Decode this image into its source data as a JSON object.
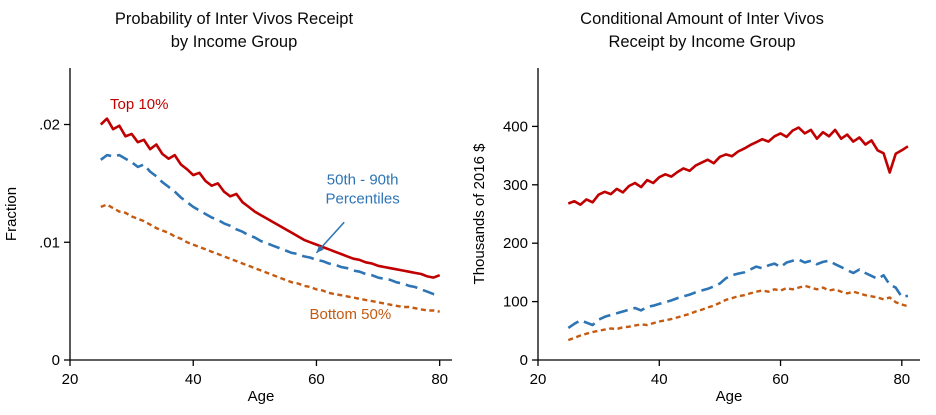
{
  "chart_data": [
    {
      "type": "line",
      "title_lines": [
        "Probability of Inter Vivos Receipt",
        "by Income Group"
      ],
      "xlabel": "Age",
      "ylabel": "Fraction",
      "xlim": [
        20,
        82
      ],
      "ylim": [
        0,
        0.0248
      ],
      "xticks": [
        20,
        40,
        60,
        80
      ],
      "yticks": [
        {
          "v": 0,
          "label": "0"
        },
        {
          "v": 0.01,
          "label": ".01"
        },
        {
          "v": 0.02,
          "label": ".02"
        }
      ],
      "grid": false,
      "legend": "none",
      "x_start": 25,
      "x_step": 1,
      "series": [
        {
          "name": "Top 10%",
          "color": "#c00000",
          "dash": "",
          "width": 2.6,
          "values": [
            0.02,
            0.0205,
            0.0196,
            0.0199,
            0.019,
            0.0192,
            0.0185,
            0.0187,
            0.0179,
            0.0183,
            0.0175,
            0.0171,
            0.0174,
            0.0166,
            0.0162,
            0.0157,
            0.0159,
            0.0152,
            0.0148,
            0.015,
            0.0143,
            0.0139,
            0.0141,
            0.0134,
            0.013,
            0.0126,
            0.0123,
            0.012,
            0.0117,
            0.0114,
            0.0111,
            0.0108,
            0.0105,
            0.0102,
            0.01,
            0.0098,
            0.0096,
            0.0094,
            0.0092,
            0.009,
            0.0088,
            0.0086,
            0.0085,
            0.0083,
            0.0082,
            0.008,
            0.0079,
            0.0078,
            0.0077,
            0.0076,
            0.0075,
            0.0074,
            0.0073,
            0.0071,
            0.007,
            0.0072
          ]
        },
        {
          "name": "50th - 90th Percentiles",
          "color": "#2e75b6",
          "dash": "12 6",
          "width": 2.6,
          "values": [
            0.017,
            0.0174,
            0.0173,
            0.0174,
            0.0171,
            0.0168,
            0.0164,
            0.0166,
            0.016,
            0.0156,
            0.0151,
            0.0147,
            0.0143,
            0.0138,
            0.0134,
            0.013,
            0.0127,
            0.0124,
            0.0121,
            0.0119,
            0.0116,
            0.0114,
            0.0111,
            0.0109,
            0.0106,
            0.0104,
            0.0101,
            0.0099,
            0.0097,
            0.0095,
            0.0093,
            0.0091,
            0.009,
            0.0088,
            0.0087,
            0.0085,
            0.0084,
            0.0082,
            0.0081,
            0.0079,
            0.0078,
            0.0076,
            0.0075,
            0.0073,
            0.0072,
            0.007,
            0.0069,
            0.0068,
            0.0066,
            0.0065,
            0.0063,
            0.0062,
            0.006,
            0.0058,
            0.0056,
            0.0055
          ]
        },
        {
          "name": "Bottom 50%",
          "color": "#c55a11",
          "dash": "5 3.5",
          "width": 2.4,
          "values": [
            0.013,
            0.0132,
            0.0129,
            0.0126,
            0.0125,
            0.0122,
            0.012,
            0.0118,
            0.0115,
            0.0112,
            0.011,
            0.0108,
            0.0105,
            0.0103,
            0.01,
            0.0098,
            0.0096,
            0.0094,
            0.0092,
            0.009,
            0.0088,
            0.0086,
            0.0084,
            0.0082,
            0.008,
            0.0078,
            0.0076,
            0.0074,
            0.0072,
            0.007,
            0.0068,
            0.0066,
            0.0065,
            0.0063,
            0.0062,
            0.006,
            0.0059,
            0.0057,
            0.0056,
            0.0055,
            0.0054,
            0.0053,
            0.0052,
            0.0051,
            0.005,
            0.0049,
            0.0048,
            0.0047,
            0.0046,
            0.0045,
            0.0045,
            0.0044,
            0.0043,
            0.0042,
            0.0042,
            0.0041
          ]
        }
      ],
      "annotations": [
        {
          "lines": [
            "Top 10%"
          ],
          "x": 26.5,
          "y": 0.0213,
          "anchor": "start",
          "color": "#c00000"
        },
        {
          "lines": [
            "50th - 90th",
            "Percentiles"
          ],
          "x": 67.5,
          "y": 0.0149,
          "anchor": "middle",
          "color": "#2e75b6"
        },
        {
          "lines": [
            "Bottom 50%"
          ],
          "x": 65.5,
          "y": 0.0035,
          "anchor": "middle",
          "color": "#c55a11"
        }
      ],
      "arrows": [
        {
          "x1": 64.5,
          "y1": 0.0117,
          "x2": 60.0,
          "y2": 0.0091,
          "color": "#2e75b6"
        }
      ]
    },
    {
      "type": "line",
      "title_lines": [
        "Conditional Amount of Inter Vivos",
        "Receipt by Income Group"
      ],
      "xlabel": "Age",
      "ylabel": "Thousands of 2016 $",
      "xlim": [
        20,
        83
      ],
      "ylim": [
        0,
        500
      ],
      "xticks": [
        20,
        40,
        60,
        80
      ],
      "yticks": [
        {
          "v": 0,
          "label": "0"
        },
        {
          "v": 100,
          "label": "100"
        },
        {
          "v": 200,
          "label": "200"
        },
        {
          "v": 300,
          "label": "300"
        },
        {
          "v": 400,
          "label": "400"
        }
      ],
      "grid": false,
      "legend": "none",
      "x_start": 25,
      "x_step": 1,
      "series": [
        {
          "name": "Top 10%",
          "color": "#c00000",
          "dash": "",
          "width": 2.6,
          "values": [
            268,
            272,
            266,
            275,
            270,
            283,
            288,
            284,
            293,
            287,
            298,
            303,
            296,
            308,
            303,
            313,
            318,
            314,
            322,
            328,
            324,
            333,
            338,
            343,
            337,
            348,
            352,
            349,
            357,
            362,
            368,
            373,
            378,
            374,
            383,
            388,
            382,
            393,
            398,
            388,
            394,
            379,
            390,
            383,
            394,
            379,
            386,
            374,
            381,
            369,
            376,
            359,
            354,
            321,
            353,
            359,
            366
          ]
        },
        {
          "name": "50th - 90th Percentiles",
          "color": "#2e75b6",
          "dash": "12 6",
          "width": 2.6,
          "values": [
            55,
            62,
            68,
            64,
            60,
            69,
            74,
            77,
            80,
            83,
            86,
            89,
            85,
            91,
            93,
            96,
            99,
            102,
            106,
            109,
            112,
            116,
            119,
            122,
            126,
            131,
            140,
            145,
            148,
            150,
            155,
            160,
            157,
            162,
            165,
            159,
            167,
            170,
            172,
            167,
            170,
            164,
            168,
            170,
            164,
            159,
            154,
            149,
            155,
            149,
            144,
            139,
            145,
            129,
            124,
            108,
            110
          ]
        },
        {
          "name": "Bottom 50%",
          "color": "#c55a11",
          "dash": "5 3.5",
          "width": 2.4,
          "values": [
            34,
            38,
            42,
            45,
            48,
            50,
            52,
            54,
            53,
            56,
            57,
            59,
            61,
            60,
            63,
            66,
            68,
            70,
            73,
            76,
            79,
            83,
            86,
            90,
            93,
            98,
            103,
            106,
            109,
            111,
            114,
            117,
            119,
            117,
            121,
            119,
            123,
            121,
            124,
            127,
            124,
            121,
            124,
            119,
            121,
            117,
            114,
            117,
            114,
            111,
            109,
            107,
            104,
            107,
            99,
            95,
            92
          ]
        }
      ],
      "annotations": [],
      "arrows": []
    }
  ]
}
